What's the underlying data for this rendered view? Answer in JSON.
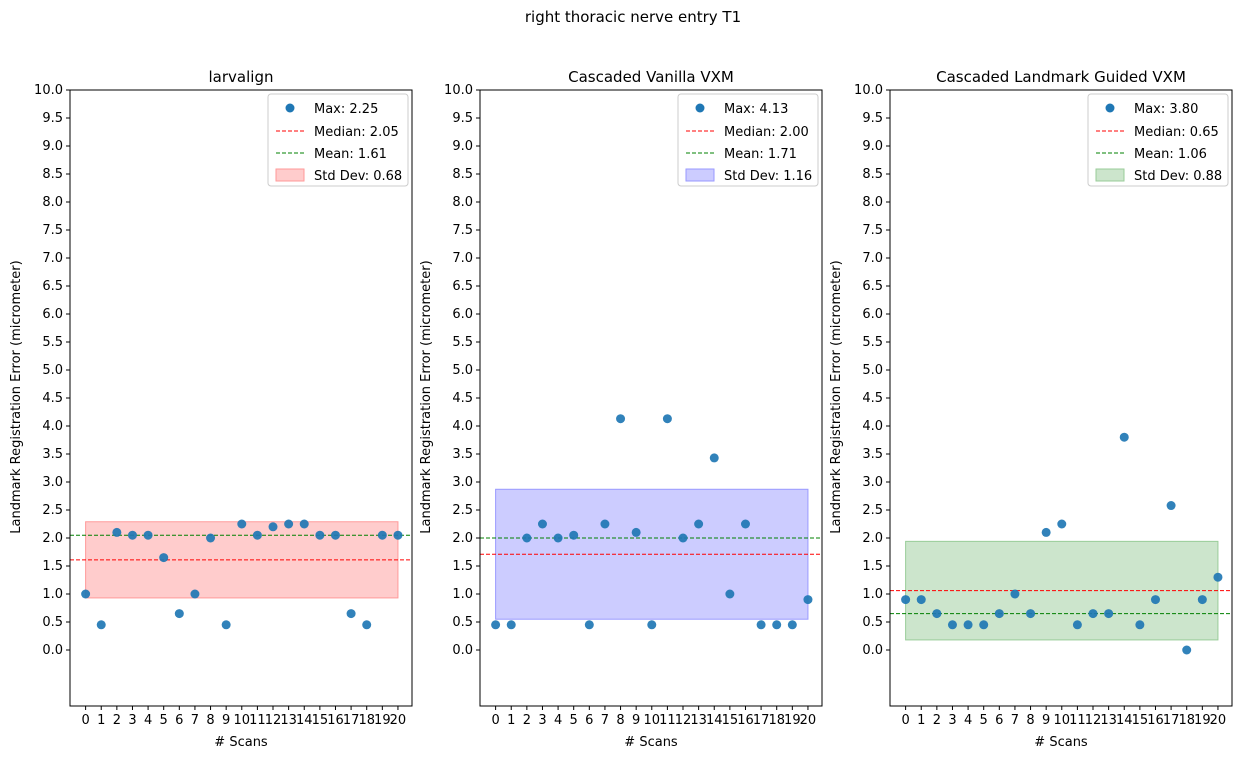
{
  "suptitle": "right thoracic nerve entry T1",
  "chart_data": [
    {
      "type": "scatter",
      "title": "larvalign",
      "xlabel": "# Scans",
      "ylabel": "Landmark Registration Error (micrometer)",
      "x": [
        0,
        1,
        2,
        3,
        4,
        5,
        6,
        7,
        8,
        9,
        10,
        11,
        12,
        13,
        14,
        15,
        16,
        17,
        18,
        19,
        20
      ],
      "y": [
        1.0,
        0.45,
        2.1,
        2.05,
        2.05,
        1.65,
        0.65,
        1.0,
        2.0,
        0.45,
        2.25,
        2.05,
        2.2,
        2.25,
        2.25,
        2.05,
        2.05,
        0.65,
        0.45,
        2.05,
        2.05
      ],
      "ylim": [
        -1.0,
        10.0
      ],
      "yticks": [
        "0.0",
        "0.5",
        "1.0",
        "1.5",
        "2.0",
        "2.5",
        "3.0",
        "3.5",
        "4.0",
        "4.5",
        "5.0",
        "5.5",
        "6.0",
        "6.5",
        "7.0",
        "7.5",
        "8.0",
        "8.5",
        "9.0",
        "9.5",
        "10.0"
      ],
      "xticks": [
        "0",
        "1",
        "2",
        "3",
        "4",
        "5",
        "6",
        "7",
        "8",
        "9",
        "10",
        "11",
        "12",
        "13",
        "14",
        "15",
        "16",
        "17",
        "18",
        "19",
        "20"
      ],
      "median": 2.05,
      "mean": 1.61,
      "std": 0.68,
      "band_color": "#ffcccc",
      "band_edge": "#ff9999",
      "point_color": "#1f77b4",
      "legend": {
        "position": "upper right",
        "max_label": "Max: 2.25",
        "median_label": "Median: 2.05",
        "mean_label": "Mean: 1.61",
        "std_label": "Std Dev: 0.68"
      }
    },
    {
      "type": "scatter",
      "title": "Cascaded Vanilla VXM",
      "xlabel": "# Scans",
      "ylabel": "Landmark Registration Error (micrometer)",
      "x": [
        0,
        1,
        2,
        3,
        4,
        5,
        6,
        7,
        8,
        9,
        10,
        11,
        12,
        13,
        14,
        15,
        16,
        17,
        18,
        19,
        20
      ],
      "y": [
        0.45,
        0.45,
        2.0,
        2.25,
        2.0,
        2.05,
        0.45,
        2.25,
        4.13,
        2.1,
        0.45,
        4.13,
        2.0,
        2.25,
        3.43,
        1.0,
        2.25,
        0.45,
        0.45,
        0.45,
        0.9
      ],
      "ylim": [
        -1.0,
        10.0
      ],
      "yticks": [
        "0.0",
        "0.5",
        "1.0",
        "1.5",
        "2.0",
        "2.5",
        "3.0",
        "3.5",
        "4.0",
        "4.5",
        "5.0",
        "5.5",
        "6.0",
        "6.5",
        "7.0",
        "7.5",
        "8.0",
        "8.5",
        "9.0",
        "9.5",
        "10.0"
      ],
      "xticks": [
        "0",
        "1",
        "2",
        "3",
        "4",
        "5",
        "6",
        "7",
        "8",
        "9",
        "10",
        "11",
        "12",
        "13",
        "14",
        "15",
        "16",
        "17",
        "18",
        "19",
        "20"
      ],
      "median": 2.0,
      "mean": 1.71,
      "std": 1.16,
      "band_color": "#ccccff",
      "band_edge": "#9999ff",
      "point_color": "#1f77b4",
      "legend": {
        "position": "upper right",
        "max_label": "Max: 4.13",
        "median_label": "Median: 2.00",
        "mean_label": "Mean: 1.71",
        "std_label": "Std Dev: 1.16"
      }
    },
    {
      "type": "scatter",
      "title": "Cascaded Landmark Guided VXM",
      "xlabel": "# Scans",
      "ylabel": "Landmark Registration Error (micrometer)",
      "x": [
        0,
        1,
        2,
        3,
        4,
        5,
        6,
        7,
        8,
        9,
        10,
        11,
        12,
        13,
        14,
        15,
        16,
        17,
        18,
        19,
        20
      ],
      "y": [
        0.9,
        0.9,
        0.65,
        0.45,
        0.45,
        0.45,
        0.65,
        1.0,
        0.65,
        2.1,
        2.25,
        0.45,
        0.65,
        0.65,
        3.8,
        0.45,
        0.9,
        2.58,
        0.0,
        0.9,
        1.3
      ],
      "ylim": [
        -1.0,
        10.0
      ],
      "yticks": [
        "0.0",
        "0.5",
        "1.0",
        "1.5",
        "2.0",
        "2.5",
        "3.0",
        "3.5",
        "4.0",
        "4.5",
        "5.0",
        "5.5",
        "6.0",
        "6.5",
        "7.0",
        "7.5",
        "8.0",
        "8.5",
        "9.0",
        "9.5",
        "10.0"
      ],
      "xticks": [
        "0",
        "1",
        "2",
        "3",
        "4",
        "5",
        "6",
        "7",
        "8",
        "9",
        "10",
        "11",
        "12",
        "13",
        "14",
        "15",
        "16",
        "17",
        "18",
        "19",
        "20"
      ],
      "median": 0.65,
      "mean": 1.06,
      "std": 0.88,
      "band_color": "#cce5cc",
      "band_edge": "#99cc99",
      "point_color": "#1f77b4",
      "legend": {
        "position": "upper right",
        "max_label": "Max: 3.80",
        "median_label": "Median: 0.65",
        "mean_label": "Mean: 1.06",
        "std_label": "Std Dev: 0.88"
      }
    }
  ]
}
